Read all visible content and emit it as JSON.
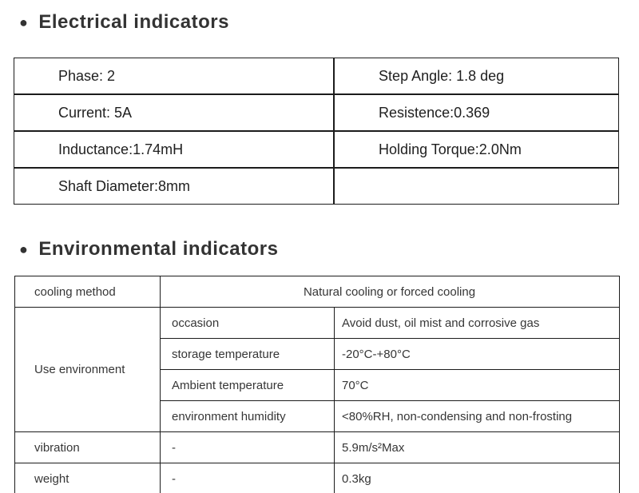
{
  "bullets": {
    "glyph": "●"
  },
  "electrical": {
    "heading": "Electrical indicators",
    "rows": [
      {
        "left": "Phase: 2",
        "right": "Step Angle: 1.8 deg"
      },
      {
        "left": "Current: 5A",
        "right": "Resistence:0.369"
      },
      {
        "left": "Inductance:1.74mH",
        "right": "Holding Torque:2.0Nm"
      },
      {
        "left": "Shaft Diameter:8mm",
        "right": ""
      }
    ]
  },
  "environmental": {
    "heading": "Environmental indicators",
    "cooling_row": {
      "label": "cooling method",
      "value": "Natural cooling or forced cooling"
    },
    "use_environment": {
      "label": "Use environment",
      "rows": [
        {
          "label": "occasion",
          "value": "Avoid dust, oil mist and corrosive gas"
        },
        {
          "label": "storage temperature",
          "value": "-20°C-+80°C"
        },
        {
          "label": "Ambient temperature",
          "value": "70°C"
        },
        {
          "label": "environment humidity",
          "value": "<80%RH, non-condensing and non-frosting"
        }
      ]
    },
    "bottom_rows": [
      {
        "label": "vibration",
        "dash": "-",
        "value": "5.9m/s²Max"
      },
      {
        "label": "weight",
        "dash": "-",
        "value": "0.3kg"
      }
    ]
  }
}
